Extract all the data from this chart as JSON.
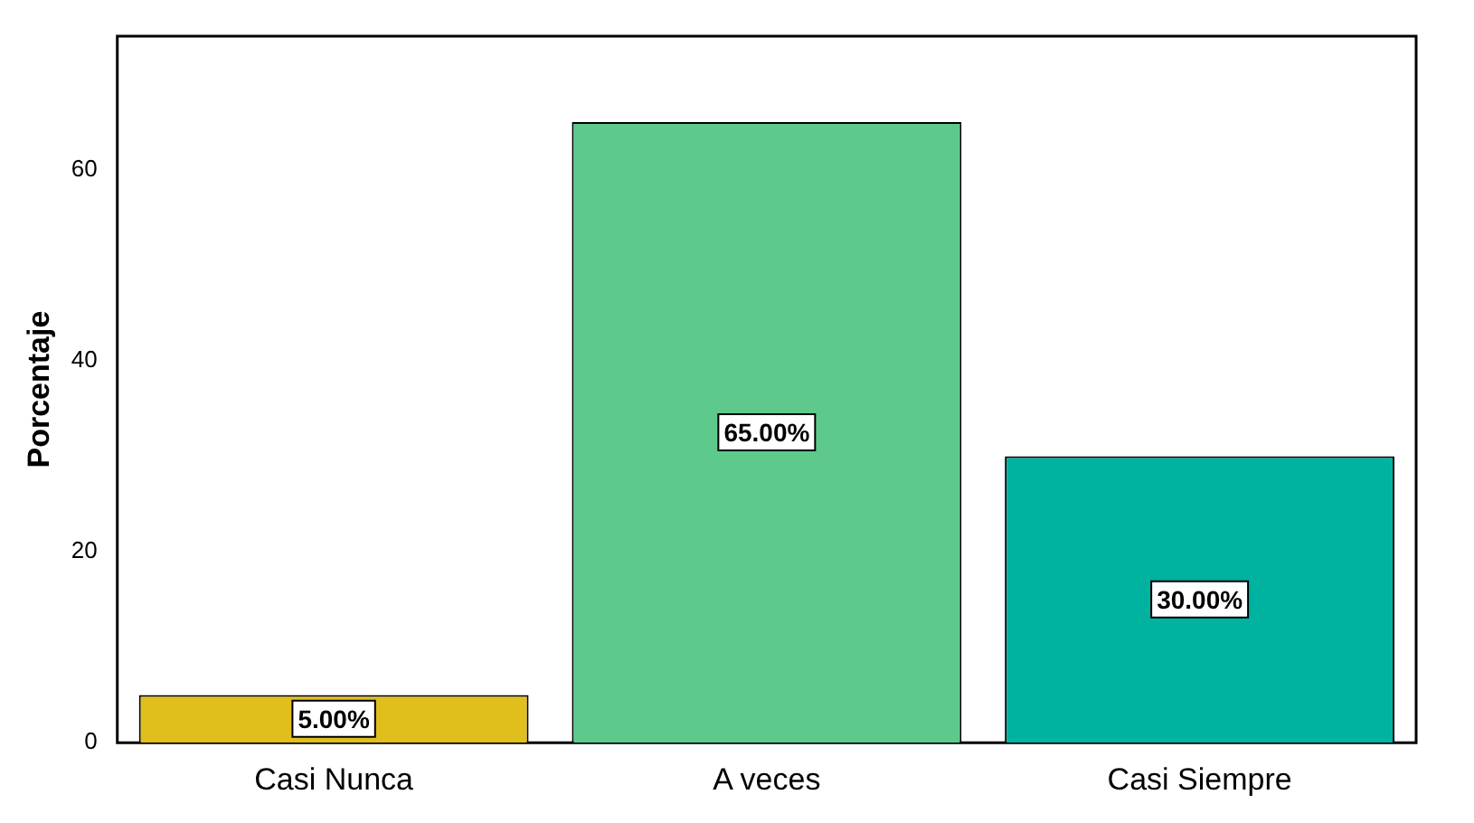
{
  "chart_data": {
    "type": "bar",
    "ylabel": "Porcentaje",
    "categories": [
      "Casi Nunca",
      "A veces",
      "Casi Siempre"
    ],
    "values": [
      5,
      65,
      30
    ],
    "colors": [
      "#e0be1c",
      "#5dc98b",
      "#00b2a0"
    ],
    "value_labels": [
      "5.00%",
      "65.00%",
      "30.00%"
    ],
    "ylim": [
      0,
      74
    ],
    "yticks": [
      0,
      20,
      40,
      60
    ],
    "grid": false,
    "legend": false
  }
}
